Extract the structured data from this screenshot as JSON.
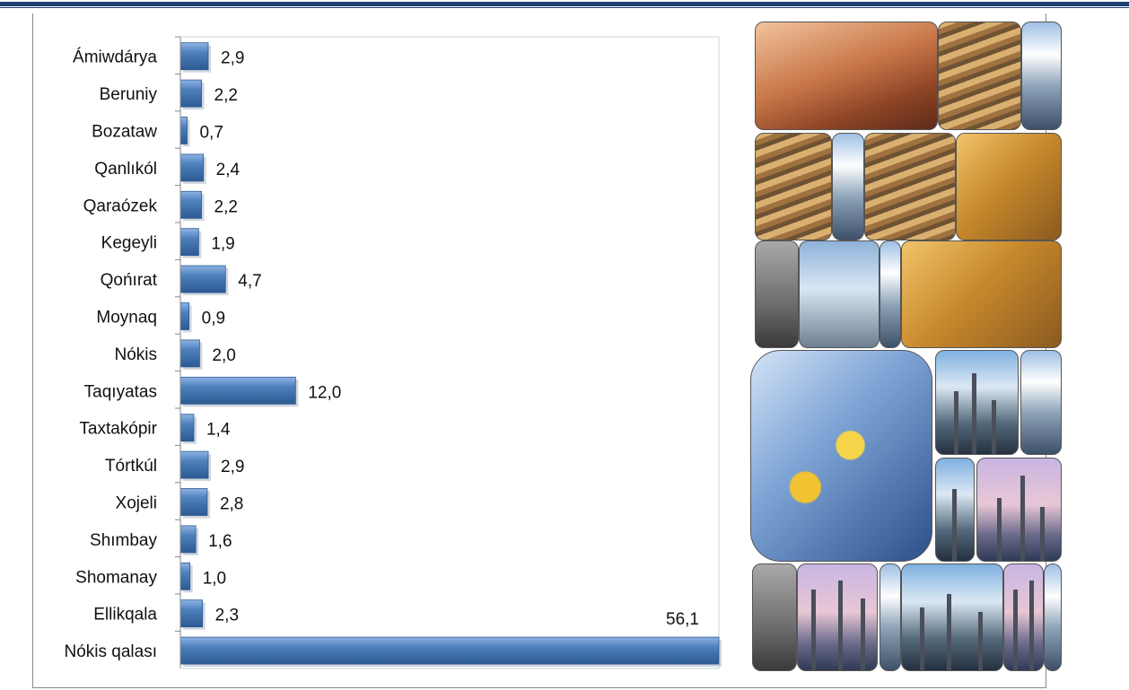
{
  "chart_data": {
    "type": "bar",
    "orientation": "horizontal",
    "title": "",
    "xlabel": "",
    "ylabel": "",
    "categories": [
      "Ámiwdárya",
      "Beruniy",
      "Bozataw",
      "Qanlıkól",
      "Qaraózek",
      "Kegeyli",
      "Qońırat",
      "Moynaq",
      "Nókis",
      "Taqıyatas",
      "Taxtakópir",
      "Tórtkúl",
      "Xojeli",
      "Shımbay",
      "Shomanay",
      "Ellikqala",
      "Nókis qalası"
    ],
    "values": [
      2.9,
      2.2,
      0.7,
      2.4,
      2.2,
      1.9,
      4.7,
      0.9,
      2.0,
      12.0,
      1.4,
      2.9,
      2.8,
      1.6,
      1.0,
      2.3,
      56.1
    ],
    "value_labels": [
      "2,9",
      "2,2",
      "0,7",
      "2,4",
      "2,2",
      "1,9",
      "4,7",
      "0,9",
      "2,0",
      "12,0",
      "1,4",
      "2,9",
      "2,8",
      "1,6",
      "1,0",
      "2,3",
      "56,1"
    ],
    "xlim": [
      0,
      56.1
    ],
    "grid": false,
    "legend": "none",
    "bar_color": "#4f81bd"
  },
  "colors": {
    "rule": "#1f3f6e",
    "bar": "#4f81bd",
    "bar_dark": "#2c5a93"
  }
}
